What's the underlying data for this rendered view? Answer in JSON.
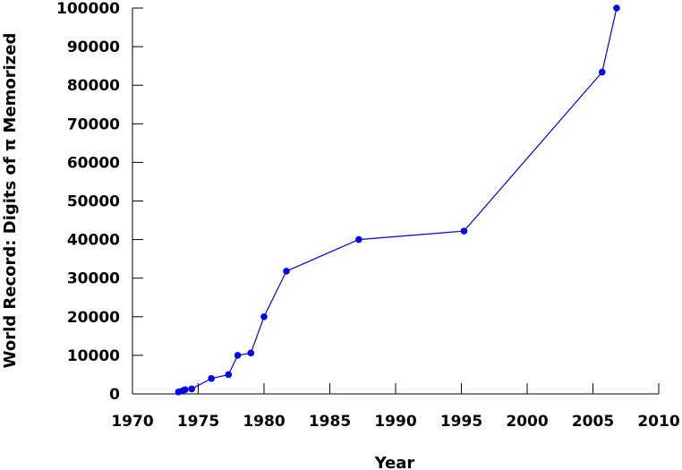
{
  "chart_data": {
    "type": "line",
    "title": "",
    "xlabel": "Year",
    "ylabel": "World Record: Digits of π Memorized",
    "xlim": [
      1970,
      2010
    ],
    "ylim": [
      0,
      100000
    ],
    "xticks": [
      1970,
      1975,
      1980,
      1985,
      1990,
      1995,
      2000,
      2005,
      2010
    ],
    "yticks": [
      0,
      10000,
      20000,
      30000,
      40000,
      50000,
      60000,
      70000,
      80000,
      90000,
      100000
    ],
    "grid": false,
    "series": [
      {
        "color": "#0000ee",
        "marker": "circle",
        "x": [
          1973.5,
          1973.8,
          1974.0,
          1974.5,
          1976.0,
          1977.3,
          1978.0,
          1979.0,
          1980.0,
          1981.7,
          1987.2,
          1995.2,
          2005.7,
          2006.8
        ],
        "y": [
          500,
          800,
          1100,
          1300,
          4000,
          5000,
          10000,
          10600,
          20000,
          31800,
          40000,
          42200,
          83400,
          100000
        ]
      }
    ]
  }
}
